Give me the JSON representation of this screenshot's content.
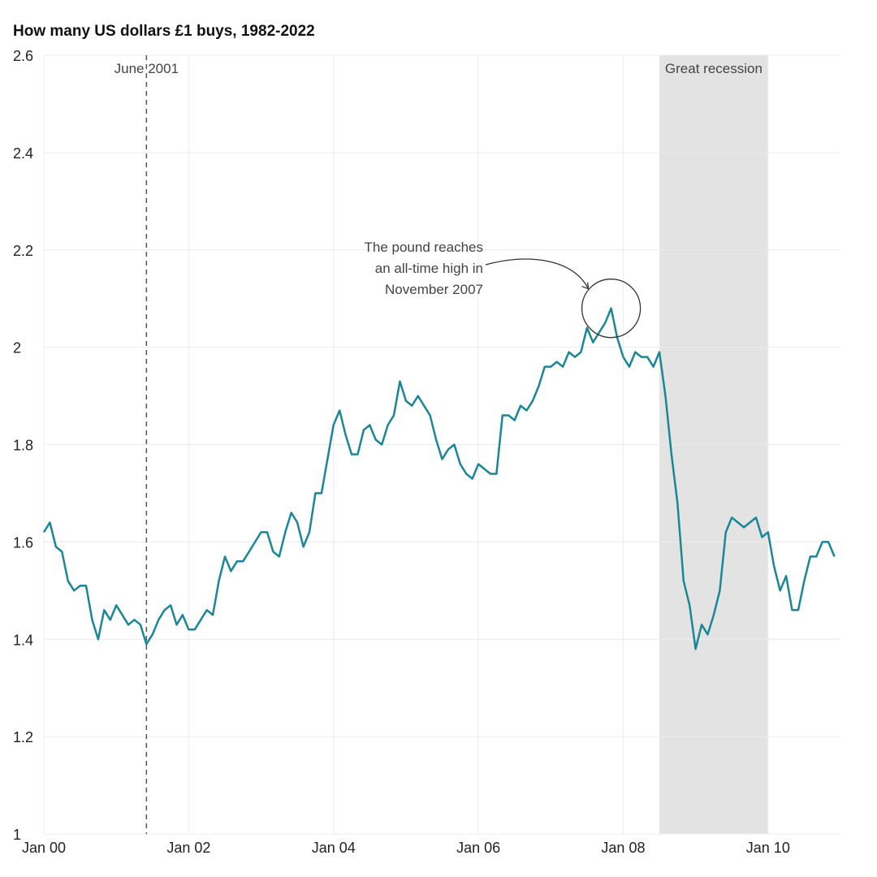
{
  "chart_data": {
    "type": "line",
    "title": "How many US dollars £1 buys, 1982-2022",
    "xlabel": "",
    "ylabel": "",
    "ylim": [
      1,
      2.6
    ],
    "xlim": [
      "2000-01",
      "2011-01"
    ],
    "yticks": [
      "1",
      "1.2",
      "1.4",
      "1.6",
      "1.8",
      "2",
      "2.2",
      "2.4",
      "2.6"
    ],
    "ytick_values": [
      1,
      1.2,
      1.4,
      1.6,
      1.8,
      2,
      2.2,
      2.4,
      2.6
    ],
    "xticks": [
      "Jan 00",
      "Jan 02",
      "Jan 04",
      "Jan 06",
      "Jan 08",
      "Jan 10"
    ],
    "xtick_values": [
      "2000-01",
      "2002-01",
      "2004-01",
      "2006-01",
      "2008-01",
      "2010-01"
    ],
    "grid": true,
    "line_color": "#1a8796",
    "start": "2000-01",
    "frequency": "monthly",
    "values": [
      1.62,
      1.64,
      1.59,
      1.58,
      1.52,
      1.5,
      1.51,
      1.51,
      1.44,
      1.4,
      1.46,
      1.44,
      1.47,
      1.45,
      1.43,
      1.44,
      1.43,
      1.39,
      1.41,
      1.44,
      1.46,
      1.47,
      1.43,
      1.45,
      1.42,
      1.42,
      1.44,
      1.46,
      1.45,
      1.52,
      1.57,
      1.54,
      1.56,
      1.56,
      1.58,
      1.6,
      1.62,
      1.62,
      1.58,
      1.57,
      1.62,
      1.66,
      1.64,
      1.59,
      1.62,
      1.7,
      1.7,
      1.77,
      1.84,
      1.87,
      1.82,
      1.78,
      1.78,
      1.83,
      1.84,
      1.81,
      1.8,
      1.84,
      1.86,
      1.93,
      1.89,
      1.88,
      1.9,
      1.88,
      1.86,
      1.81,
      1.77,
      1.79,
      1.8,
      1.76,
      1.74,
      1.73,
      1.76,
      1.75,
      1.74,
      1.74,
      1.86,
      1.86,
      1.85,
      1.88,
      1.87,
      1.89,
      1.92,
      1.96,
      1.96,
      1.97,
      1.96,
      1.99,
      1.98,
      1.99,
      2.04,
      2.01,
      2.03,
      2.05,
      2.08,
      2.02,
      1.98,
      1.96,
      1.99,
      1.98,
      1.98,
      1.96,
      1.99,
      1.9,
      1.78,
      1.68,
      1.52,
      1.47,
      1.38,
      1.43,
      1.41,
      1.45,
      1.5,
      1.62,
      1.65,
      1.64,
      1.63,
      1.64,
      1.65,
      1.61,
      1.62,
      1.55,
      1.5,
      1.53,
      1.46,
      1.46,
      1.52,
      1.57,
      1.57,
      1.6,
      1.6,
      1.57
    ],
    "annotations": {
      "june_2001": {
        "label": "June 2001",
        "date": "2001-06",
        "style": "dashed-vertical-line"
      },
      "recession": {
        "label": "Great recession",
        "from": "2008-07",
        "to": "2010-01",
        "color": "#e3e3e3"
      },
      "peak": {
        "lines": [
          "The pound reaches",
          "an all-time high in",
          "November 2007"
        ],
        "date": "2007-11",
        "value": 2.08
      }
    }
  }
}
